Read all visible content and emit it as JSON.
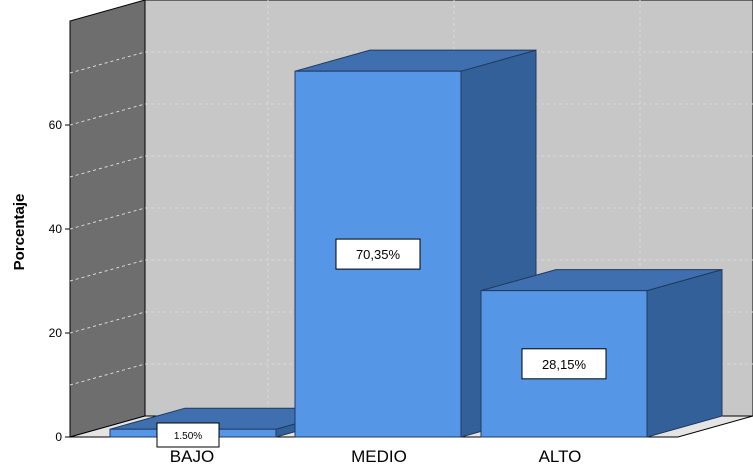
{
  "chart_data": {
    "type": "bar",
    "subtype": "3d-column",
    "categories": [
      "BAJO",
      "MEDIO",
      "ALTO"
    ],
    "values": [
      1.5,
      70.35,
      28.15
    ],
    "data_labels": [
      "1.50%",
      "70,35%",
      "28,15%"
    ],
    "ylabel": "Porcentaje",
    "yticks": [
      0,
      20,
      40,
      60
    ],
    "ylim": [
      0,
      80
    ],
    "grid": true,
    "legend": "none",
    "colors": {
      "bar_front": "#5596e6",
      "bar_side": "#34609a",
      "bar_top": "#3f6fae",
      "back_wall": "#c7c7c7",
      "side_wall": "#6e6e6e",
      "floor": "#e4e4e4"
    }
  }
}
